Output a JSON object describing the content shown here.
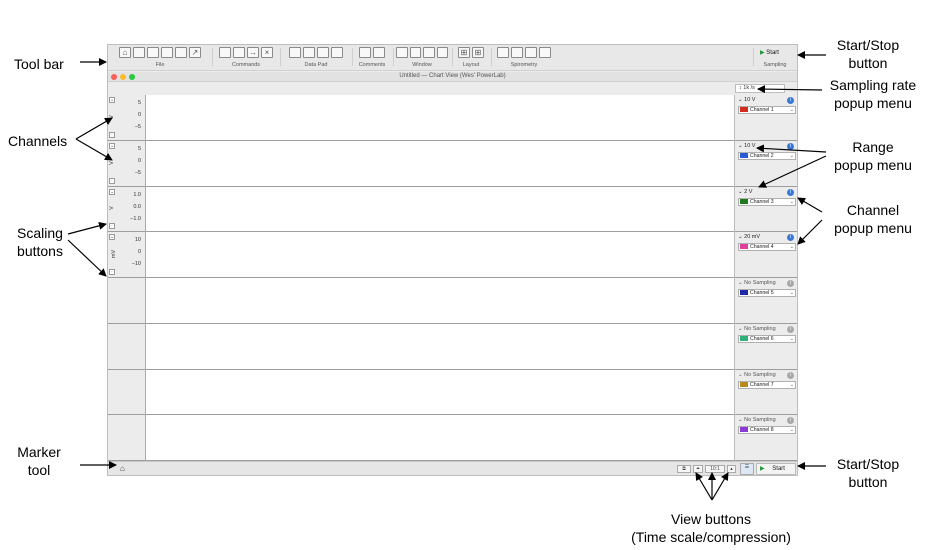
{
  "annotations": {
    "tool_bar": "Tool bar",
    "channels": "Channels",
    "scaling_buttons": [
      "Scaling",
      "buttons"
    ],
    "marker_tool": [
      "Marker",
      "tool"
    ],
    "start_stop_top": [
      "Start/Stop",
      "button"
    ],
    "sampling_rate": [
      "Sampling rate",
      "popup menu"
    ],
    "range": [
      "Range",
      "popup menu"
    ],
    "channel_popup": [
      "Channel",
      "popup menu"
    ],
    "start_stop_bottom": [
      "Start/Stop",
      "button"
    ],
    "view_buttons": [
      "View buttons",
      "(Time scale/compression)"
    ]
  },
  "toolbar": {
    "groups": [
      "File",
      "Commands",
      "Data Pad",
      "Comments",
      "Window",
      "Layout",
      "Spirometry"
    ],
    "start_label": "Start",
    "sampling_label": "Sampling"
  },
  "window": {
    "title": "Untitled — Chart View (Wes' PowerLab)",
    "sampling_rate": "1k /s"
  },
  "channels": [
    {
      "name": "Channel 1",
      "range": "10 V",
      "unit": "V",
      "ticks": [
        "5",
        "0",
        "–5"
      ],
      "color": "#d42b1e",
      "sampling": true
    },
    {
      "name": "Channel 2",
      "range": "10 V",
      "unit": "V",
      "ticks": [
        "5",
        "0",
        "–5"
      ],
      "color": "#2a5bd7",
      "sampling": true
    },
    {
      "name": "Channel 3",
      "range": "2 V",
      "unit": "V",
      "ticks": [
        "1.0",
        "0.0",
        "–1.0"
      ],
      "color": "#1f7a1f",
      "sampling": true
    },
    {
      "name": "Channel 4",
      "range": "20 mV",
      "unit": "mV",
      "ticks": [
        "10",
        "0",
        "–10"
      ],
      "color": "#e0409c",
      "sampling": true
    },
    {
      "name": "Channel 5",
      "range": "No Sampling",
      "color": "#1f2aa8",
      "sampling": false
    },
    {
      "name": "Channel 6",
      "range": "No Sampling",
      "color": "#2fb07a",
      "sampling": false
    },
    {
      "name": "Channel 7",
      "range": "No Sampling",
      "color": "#b88a1e",
      "sampling": false
    },
    {
      "name": "Channel 8",
      "range": "No Sampling",
      "color": "#8a3ad6",
      "sampling": false
    }
  ],
  "bottom": {
    "compression": "10:1",
    "start_label": "Start"
  }
}
